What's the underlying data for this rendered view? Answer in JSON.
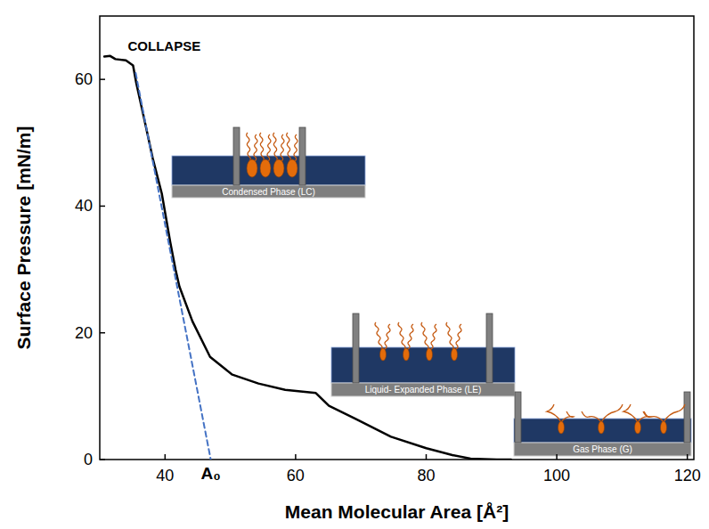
{
  "chart_data": {
    "type": "line",
    "x_label": "Mean Molecular Area [Å²]",
    "y_label": "Surface Pressure [mN/m]",
    "xlim": [
      30,
      121
    ],
    "ylim": [
      0,
      70
    ],
    "xticks": [
      40,
      60,
      80,
      100,
      120
    ],
    "yticks": [
      0,
      20,
      40,
      60
    ],
    "grid": false,
    "series": [
      {
        "color": "#000000",
        "line_style": "solid",
        "x": [
          30.7,
          31.6,
          32.4,
          34,
          35.1,
          35.6,
          36.8,
          38.1,
          39.5,
          40.8,
          41.6,
          42.2,
          44.2,
          46.9,
          50.3,
          54.3,
          58.4,
          63.1,
          65.1,
          69.2,
          74.6,
          80,
          84,
          86.8,
          90.8,
          93
        ],
        "values": [
          63.6,
          63.7,
          63.2,
          63,
          62.2,
          59.4,
          53.8,
          47.6,
          42,
          34.3,
          30,
          27.3,
          21.8,
          16.2,
          13.4,
          12,
          11,
          10.5,
          8.5,
          6.4,
          3.6,
          1.8,
          0.7,
          0.15,
          0,
          0
        ]
      },
      {
        "color": "#4472c4",
        "line_style": "dashed",
        "x": [
          35.5,
          47
        ],
        "values": [
          61,
          0
        ]
      }
    ],
    "annotations": [
      {
        "text": "COLLAPSE",
        "x": 34.3,
        "y": 64.5
      },
      {
        "text": "A₀",
        "x": 47
      }
    ],
    "insets": [
      {
        "text": "Condensed Phase (LC)"
      },
      {
        "text": "Liquid- Expanded Phase (LE)"
      },
      {
        "text": "Gas Phase (G)"
      }
    ]
  }
}
